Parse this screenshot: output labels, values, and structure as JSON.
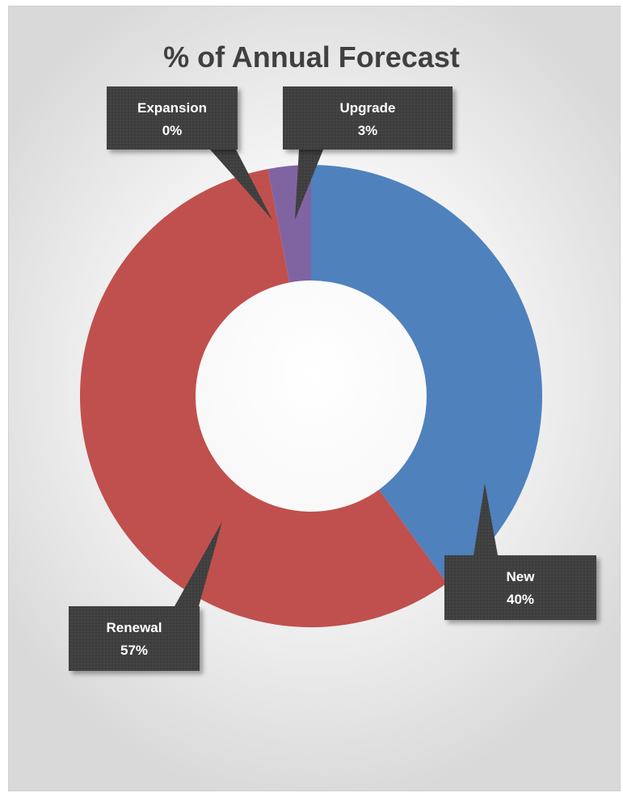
{
  "chart_data": {
    "type": "pie",
    "variant": "doughnut",
    "title": "% of Annual Forecast",
    "categories": [
      "New",
      "Renewal",
      "Expansion",
      "Upgrade"
    ],
    "values": [
      40,
      57,
      0,
      3
    ],
    "value_labels": [
      "40%",
      "57%",
      "0%",
      "3%"
    ],
    "colors": [
      "#4f81bd",
      "#c0504d",
      "#9bbb59",
      "#8064a2"
    ],
    "label_background": "#404040",
    "legend": "none"
  }
}
